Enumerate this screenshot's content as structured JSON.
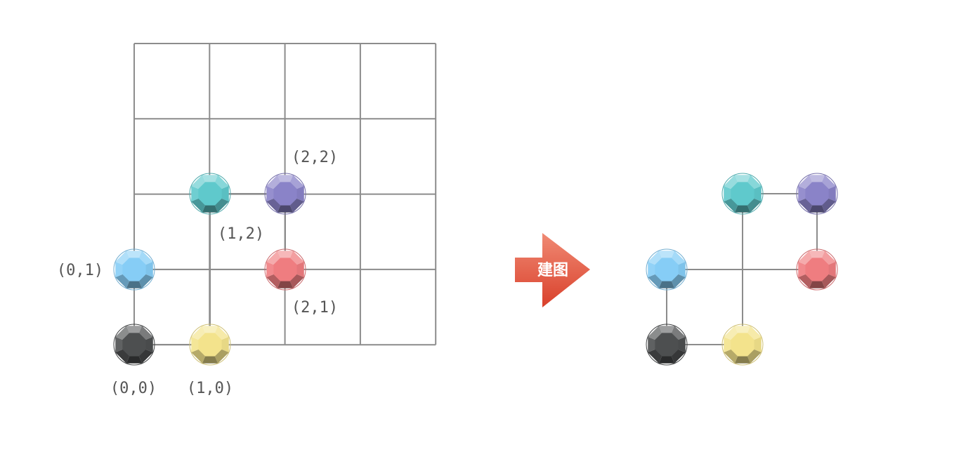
{
  "left_grid": {
    "cells": 4,
    "labels": {
      "n00": "(0,0)",
      "n10": "(1,0)",
      "n01": "(0,1)",
      "n12": "(1,2)",
      "n22": "(2,2)",
      "n21": "(2,1)"
    }
  },
  "arrow": {
    "label": "建图",
    "color": "#e0533c"
  },
  "gems": {
    "n00": {
      "color": "#4d4f50",
      "name": "dark-gray-gem"
    },
    "n10": {
      "color": "#f3e38c",
      "name": "yellow-gem"
    },
    "n01": {
      "color": "#86cdf6",
      "name": "light-blue-gem"
    },
    "n12": {
      "color": "#5fc9cc",
      "name": "teal-gem"
    },
    "n22": {
      "color": "#8a83c8",
      "name": "purple-gem"
    },
    "n21": {
      "color": "#ef7d80",
      "name": "red-gem"
    }
  },
  "right_graph": {
    "edges": [
      [
        "n00",
        "n10"
      ],
      [
        "n00",
        "n01"
      ],
      [
        "n01",
        "n21"
      ],
      [
        "n12",
        "n22"
      ],
      [
        "n22",
        "n21"
      ],
      [
        "n12",
        "n10"
      ]
    ]
  },
  "colors": {
    "grid_line": "#8c8c8c",
    "edge_line": "#8c8c8c"
  }
}
